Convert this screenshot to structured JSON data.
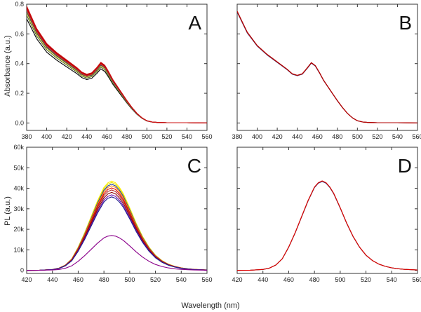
{
  "figure": {
    "xlabel": "Wavelength (nm)",
    "ylabel_top": "Absorbance (a.u.)",
    "ylabel_bottom": "PL (a.u.)"
  },
  "chart_data": [
    {
      "id": "A",
      "type": "line",
      "panel_label": "A",
      "xlim": [
        380,
        560
      ],
      "ylim": [
        -0.05,
        0.8
      ],
      "xticks": [
        380,
        400,
        420,
        440,
        460,
        480,
        500,
        520,
        540,
        560
      ],
      "xtick_labels": [
        "380",
        "400",
        "420",
        "440",
        "460",
        "480",
        "500",
        "520",
        "540",
        "560"
      ],
      "yticks": [
        0.0,
        0.2,
        0.4,
        0.6,
        0.8
      ],
      "ytick_labels": [
        "0.0",
        "0.2",
        "0.4",
        "0.6",
        "0.8"
      ],
      "show_y_tick_labels": true,
      "base_curve": {
        "x": [
          380,
          390,
          400,
          410,
          420,
          430,
          435,
          440,
          445,
          450,
          454,
          458,
          462,
          466,
          470,
          475,
          480,
          485,
          490,
          495,
          500,
          505,
          510,
          515,
          520,
          530,
          540,
          550,
          560
        ],
        "y": [
          0.78,
          0.63,
          0.53,
          0.47,
          0.42,
          0.37,
          0.34,
          0.325,
          0.335,
          0.37,
          0.405,
          0.385,
          0.34,
          0.29,
          0.25,
          0.2,
          0.15,
          0.105,
          0.065,
          0.035,
          0.015,
          0.007,
          0.004,
          0.003,
          0.002,
          0.002,
          0.002,
          0.001,
          0.0
        ]
      },
      "series": [
        {
          "name": "s1",
          "color": "#000000",
          "scale": 0.9
        },
        {
          "name": "s2",
          "color": "#556b2f",
          "scale": 0.93
        },
        {
          "name": "s3",
          "color": "#ffee00",
          "scale": 0.95
        },
        {
          "name": "s4",
          "color": "#1f3fa0",
          "scale": 0.96
        },
        {
          "name": "s5",
          "color": "#8b4513",
          "scale": 0.97
        },
        {
          "name": "s6",
          "color": "#ff8c00",
          "scale": 0.98
        },
        {
          "name": "s7",
          "color": "#6a0dad",
          "scale": 0.985
        },
        {
          "name": "s8",
          "color": "#e00000",
          "scale": 0.99
        },
        {
          "name": "s9",
          "color": "#b00000",
          "scale": 1.0
        },
        {
          "name": "s10",
          "color": "#cc1111",
          "scale": 1.01
        }
      ]
    },
    {
      "id": "B",
      "type": "line",
      "panel_label": "B",
      "xlim": [
        380,
        560
      ],
      "ylim": [
        -0.05,
        0.8
      ],
      "xticks": [
        380,
        400,
        420,
        440,
        460,
        480,
        500,
        520,
        540,
        560
      ],
      "xtick_labels": [
        "380",
        "400",
        "420",
        "440",
        "460",
        "480",
        "500",
        "520",
        "540",
        "560"
      ],
      "yticks": [
        0.0,
        0.2,
        0.4,
        0.6,
        0.8
      ],
      "ytick_labels": [],
      "show_y_tick_labels": false,
      "base_curve": {
        "x": [
          380,
          390,
          400,
          410,
          420,
          430,
          435,
          440,
          445,
          450,
          454,
          458,
          462,
          466,
          470,
          475,
          480,
          485,
          490,
          495,
          500,
          505,
          510,
          515,
          520,
          530,
          540,
          550,
          560
        ],
        "y": [
          0.75,
          0.61,
          0.52,
          0.46,
          0.41,
          0.36,
          0.33,
          0.32,
          0.33,
          0.37,
          0.405,
          0.385,
          0.34,
          0.29,
          0.25,
          0.2,
          0.15,
          0.105,
          0.065,
          0.035,
          0.015,
          0.007,
          0.004,
          0.003,
          0.002,
          0.002,
          0.002,
          0.001,
          0.0
        ]
      },
      "series": [
        {
          "name": "s1",
          "color": "#1f3fa0",
          "scale": 0.995
        },
        {
          "name": "s2",
          "color": "#8b4513",
          "scale": 1.0
        },
        {
          "name": "s3",
          "color": "#e00000",
          "scale": 1.002
        },
        {
          "name": "s4",
          "color": "#b00000",
          "scale": 1.004
        }
      ]
    },
    {
      "id": "C",
      "type": "line",
      "panel_label": "C",
      "xlim": [
        420,
        560
      ],
      "ylim": [
        -1500,
        60000
      ],
      "xticks": [
        420,
        440,
        460,
        480,
        500,
        520,
        540,
        560
      ],
      "xtick_labels": [
        "420",
        "440",
        "460",
        "480",
        "500",
        "520",
        "540",
        "560"
      ],
      "yticks": [
        0,
        10000,
        20000,
        30000,
        40000,
        50000,
        60000
      ],
      "ytick_labels": [
        "0",
        "10k",
        "20k",
        "30k",
        "40k",
        "50k",
        "60k"
      ],
      "show_y_tick_labels": true,
      "base_curve": {
        "x": [
          420,
          430,
          440,
          445,
          450,
          455,
          460,
          465,
          470,
          475,
          480,
          483,
          486,
          489,
          492,
          495,
          500,
          505,
          510,
          515,
          520,
          525,
          530,
          535,
          540,
          545,
          550,
          560
        ],
        "y": [
          0.0,
          0.002,
          0.01,
          0.025,
          0.06,
          0.13,
          0.26,
          0.42,
          0.6,
          0.78,
          0.93,
          0.98,
          1.0,
          0.98,
          0.93,
          0.86,
          0.7,
          0.53,
          0.38,
          0.26,
          0.17,
          0.11,
          0.07,
          0.045,
          0.028,
          0.018,
          0.011,
          0.004
        ]
      },
      "series": [
        {
          "name": "s1",
          "color": "#ffee00",
          "scale": 43500
        },
        {
          "name": "s2",
          "color": "#e6e600",
          "scale": 42800
        },
        {
          "name": "s3",
          "color": "#1f3fa0",
          "scale": 42000
        },
        {
          "name": "s4",
          "color": "#ff8c00",
          "scale": 41200
        },
        {
          "name": "s5",
          "color": "#e00000",
          "scale": 40200
        },
        {
          "name": "s6",
          "color": "#b22222",
          "scale": 39200
        },
        {
          "name": "s7",
          "color": "#8b0000",
          "scale": 38000
        },
        {
          "name": "s8",
          "color": "#6a0dad",
          "scale": 36800
        },
        {
          "name": "s9",
          "color": "#1f1f8f",
          "scale": 35800
        },
        {
          "name": "s10",
          "color": "#8b008b",
          "scale": 17000
        }
      ]
    },
    {
      "id": "D",
      "type": "line",
      "panel_label": "D",
      "xlim": [
        420,
        560
      ],
      "ylim": [
        -1500,
        60000
      ],
      "xticks": [
        420,
        440,
        460,
        480,
        500,
        520,
        540,
        560
      ],
      "xtick_labels": [
        "420",
        "440",
        "460",
        "480",
        "500",
        "520",
        "540",
        "560"
      ],
      "yticks": [
        0,
        10000,
        20000,
        30000,
        40000,
        50000,
        60000
      ],
      "ytick_labels": [],
      "show_y_tick_labels": false,
      "base_curve": {
        "x": [
          420,
          430,
          440,
          445,
          450,
          455,
          460,
          465,
          470,
          475,
          480,
          483,
          486,
          489,
          492,
          495,
          500,
          505,
          510,
          515,
          520,
          525,
          530,
          535,
          540,
          545,
          550,
          560
        ],
        "y": [
          0.0,
          0.002,
          0.01,
          0.025,
          0.06,
          0.13,
          0.26,
          0.42,
          0.6,
          0.78,
          0.93,
          0.98,
          1.0,
          0.98,
          0.93,
          0.86,
          0.7,
          0.53,
          0.38,
          0.26,
          0.17,
          0.11,
          0.07,
          0.045,
          0.028,
          0.018,
          0.011,
          0.004
        ]
      },
      "series": [
        {
          "name": "s1",
          "color": "#1f3fa0",
          "scale": 43300
        },
        {
          "name": "s2",
          "color": "#8b4513",
          "scale": 43500
        },
        {
          "name": "s3",
          "color": "#e00000",
          "scale": 43600
        }
      ]
    }
  ]
}
